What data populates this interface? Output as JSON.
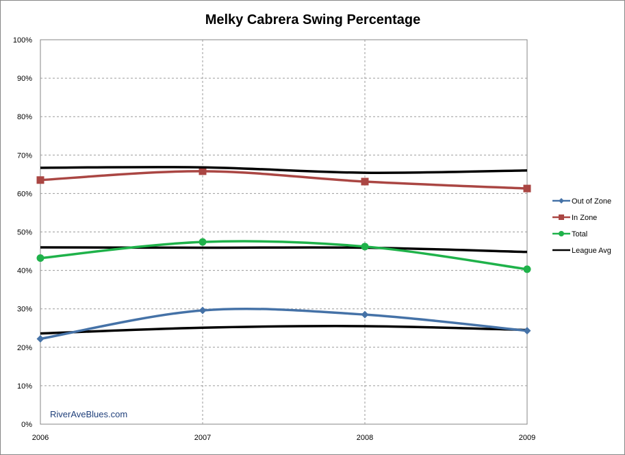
{
  "chart_data": {
    "type": "line",
    "title": "Melky Cabrera Swing Percentage",
    "xlabel": "",
    "ylabel": "",
    "categories": [
      "2006",
      "2007",
      "2008",
      "2009"
    ],
    "y_ticks": [
      "0%",
      "10%",
      "20%",
      "30%",
      "40%",
      "50%",
      "60%",
      "70%",
      "80%",
      "90%",
      "100%"
    ],
    "ylim": [
      0,
      100
    ],
    "y_unit": "%",
    "grid": true,
    "smoothed": true,
    "legend_position": "right",
    "series": [
      {
        "name": "Out of Zone",
        "color": "#4572a7",
        "marker": "diamond",
        "values": [
          22.2,
          29.6,
          28.5,
          24.3
        ]
      },
      {
        "name": "In Zone",
        "color": "#aa4643",
        "marker": "square",
        "values": [
          63.5,
          65.8,
          63.1,
          61.3
        ]
      },
      {
        "name": "Total",
        "color": "#1fb24a",
        "marker": "circle",
        "values": [
          43.2,
          47.4,
          46.2,
          40.3
        ]
      },
      {
        "name": "League Avg",
        "color": "#000000",
        "marker": "none",
        "values": [
          66.7,
          66.8,
          65.4,
          66.0
        ]
      }
    ],
    "extra_lines": [
      {
        "series": "League Avg",
        "color": "#000000",
        "values": [
          46.0,
          45.9,
          45.9,
          44.8
        ]
      },
      {
        "series": "League Avg",
        "color": "#000000",
        "values": [
          23.6,
          25.1,
          25.5,
          24.5
        ]
      }
    ],
    "watermark": "RiverAveBlues.com"
  }
}
